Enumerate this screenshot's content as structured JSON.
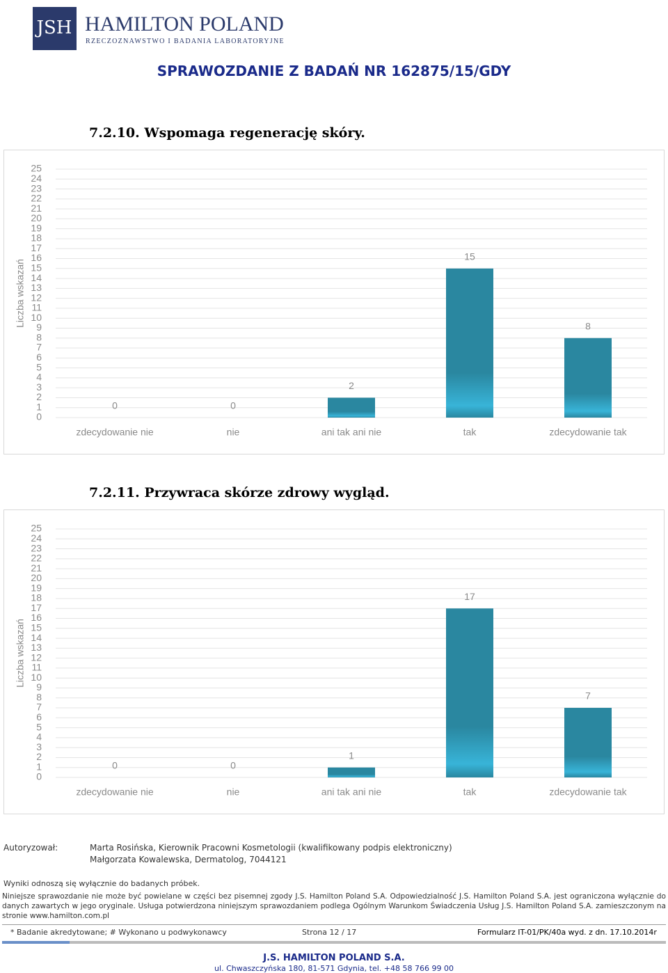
{
  "header": {
    "logo_mark": "JSH",
    "logo_title": "HAMILTON POLAND",
    "logo_subtitle": "RZECZOZNAWSTWO I BADANIA LABORATORYJNE",
    "title": "SPRAWOZDANIE Z BADAŃ NR 162875/15/GDY"
  },
  "chart_data": [
    {
      "type": "bar",
      "title": "7.2.10. Wspomaga regenerację skóry.",
      "y_label": "Liczba wskazań",
      "categories": [
        "zdecydowanie nie",
        "nie",
        "ani tak ani nie",
        "tak",
        "zdecydowanie tak"
      ],
      "values": [
        0,
        0,
        2,
        15,
        8
      ],
      "color": "#2a87a0",
      "ylim": [
        0,
        25
      ],
      "yticks": [
        0,
        1,
        2,
        3,
        4,
        5,
        6,
        7,
        8,
        9,
        10,
        11,
        12,
        13,
        14,
        15,
        16,
        17,
        18,
        19,
        20,
        21,
        22,
        23,
        24,
        25
      ],
      "grid": true
    },
    {
      "type": "bar",
      "title": "7.2.11. Przywraca skórze zdrowy wygląd.",
      "y_label": "Liczba wskazań",
      "categories": [
        "zdecydowanie nie",
        "nie",
        "ani tak ani nie",
        "tak",
        "zdecydowanie tak"
      ],
      "values": [
        0,
        0,
        1,
        17,
        7
      ],
      "color": "#2a87a0",
      "ylim": [
        0,
        25
      ],
      "yticks": [
        0,
        1,
        2,
        3,
        4,
        5,
        6,
        7,
        8,
        9,
        10,
        11,
        12,
        13,
        14,
        15,
        16,
        17,
        18,
        19,
        20,
        21,
        22,
        23,
        24,
        25
      ],
      "grid": true
    }
  ],
  "footer": {
    "authorized_label": "Autoryzował:",
    "authorized": [
      "Marta Rosińska, Kierownik Pracowni Kosmetologii (kwalifikowany podpis elektroniczny)",
      "Małgorzata Kowalewska, Dermatolog, 7044121"
    ],
    "results_note": "Wyniki odnoszą się wyłącznie do badanych próbek.",
    "disclaimer": "Niniejsze sprawozdanie nie może być powielane w części bez pisemnej zgody J.S. Hamilton Poland S.A. Odpowiedzialność J.S. Hamilton Poland S.A. jest ograniczona wyłącznie do danych zawartych w jego oryginale. Usługa potwierdzona niniejszym sprawozdaniem podlega Ogólnym Warunkom Świadczenia Usług J.S. Hamilton Poland S.A. zamieszczonym na stronie www.hamilton.com.pl",
    "accreditation": "* Badanie akredytowane; # Wykonano u podwykonawcy",
    "page": "Strona 12 / 17",
    "form": "Formularz IT-01/PK/40a wyd. z dn. 17.10.2014r",
    "company": "J.S. HAMILTON POLAND S.A.",
    "address": "ul. Chwaszczyńska 180, 81-571 Gdynia, tel. +48 58 766 99 00"
  }
}
